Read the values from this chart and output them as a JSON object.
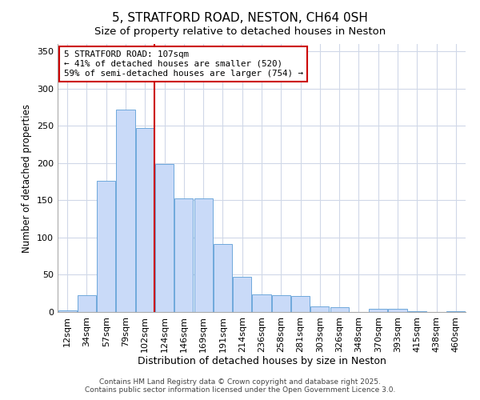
{
  "title": "5, STRATFORD ROAD, NESTON, CH64 0SH",
  "subtitle": "Size of property relative to detached houses in Neston",
  "xlabel": "Distribution of detached houses by size in Neston",
  "ylabel": "Number of detached properties",
  "bar_labels": [
    "12sqm",
    "34sqm",
    "57sqm",
    "79sqm",
    "102sqm",
    "124sqm",
    "146sqm",
    "169sqm",
    "191sqm",
    "214sqm",
    "236sqm",
    "258sqm",
    "281sqm",
    "303sqm",
    "326sqm",
    "348sqm",
    "370sqm",
    "393sqm",
    "415sqm",
    "438sqm",
    "460sqm"
  ],
  "bar_values": [
    2,
    23,
    176,
    272,
    247,
    199,
    153,
    153,
    91,
    47,
    24,
    23,
    21,
    7,
    6,
    0,
    4,
    4,
    1,
    0,
    1
  ],
  "bar_color": "#c9daf8",
  "bar_edge_color": "#6fa8dc",
  "red_line_x": 4.5,
  "property_label": "5 STRATFORD ROAD: 107sqm",
  "annotation_line1": "← 41% of detached houses are smaller (520)",
  "annotation_line2": "59% of semi-detached houses are larger (754) →",
  "vline_color": "#cc0000",
  "box_edge_color": "#cc0000",
  "ylim": [
    0,
    360
  ],
  "yticks": [
    0,
    50,
    100,
    150,
    200,
    250,
    300,
    350
  ],
  "background_color": "#ffffff",
  "grid_color": "#d0d8e8",
  "footer_line1": "Contains HM Land Registry data © Crown copyright and database right 2025.",
  "footer_line2": "Contains public sector information licensed under the Open Government Licence 3.0."
}
